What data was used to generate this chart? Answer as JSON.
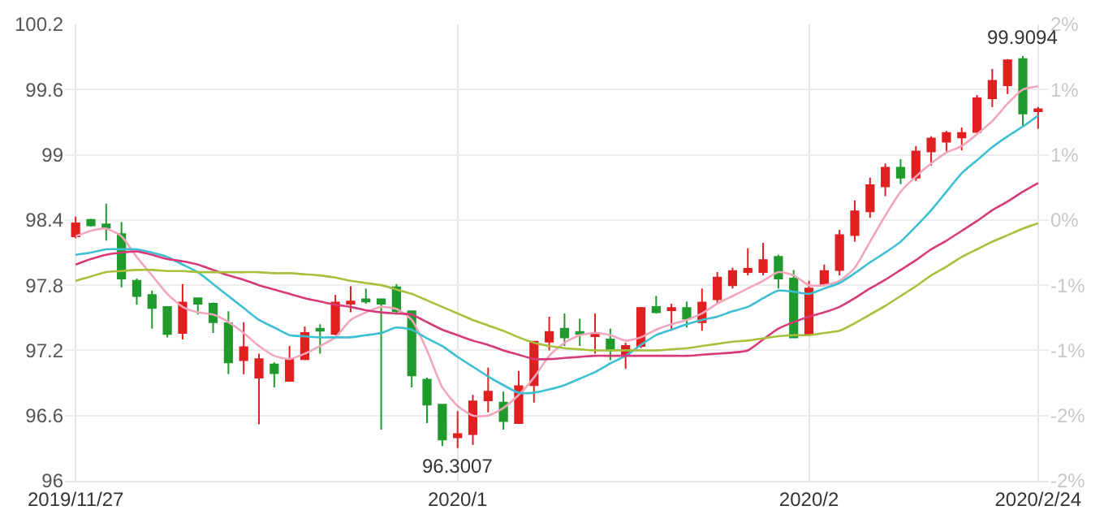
{
  "chart_data": {
    "type": "candlestick",
    "categories": [
      "2019/11/27",
      null,
      null,
      null,
      null,
      null,
      null,
      null,
      null,
      null,
      null,
      null,
      null,
      null,
      null,
      null,
      null,
      null,
      null,
      null,
      null,
      null,
      null,
      null,
      null,
      "2020/1",
      null,
      null,
      null,
      null,
      null,
      null,
      null,
      null,
      null,
      null,
      null,
      null,
      null,
      null,
      null,
      null,
      null,
      null,
      null,
      null,
      null,
      null,
      "2020/2",
      null,
      null,
      null,
      null,
      null,
      null,
      null,
      null,
      null,
      null,
      null,
      null,
      null,
      null,
      "2020/2/24"
    ],
    "ohlc": [
      [
        98.25,
        98.43,
        98.23,
        98.37
      ],
      [
        98.4,
        98.41,
        98.34,
        98.35
      ],
      [
        98.36,
        98.55,
        98.21,
        98.33
      ],
      [
        98.27,
        98.38,
        97.78,
        97.86
      ],
      [
        97.84,
        97.86,
        97.62,
        97.7
      ],
      [
        97.71,
        97.75,
        97.4,
        97.59
      ],
      [
        97.6,
        97.6,
        97.32,
        97.35
      ],
      [
        97.36,
        97.81,
        97.3,
        97.64
      ],
      [
        97.68,
        97.68,
        97.53,
        97.63
      ],
      [
        97.63,
        97.64,
        97.36,
        97.46
      ],
      [
        97.45,
        97.56,
        96.98,
        97.09
      ],
      [
        97.11,
        97.46,
        96.98,
        97.23
      ],
      [
        96.95,
        97.17,
        96.52,
        97.12
      ],
      [
        97.07,
        97.09,
        96.86,
        96.99
      ],
      [
        96.92,
        97.24,
        96.92,
        97.12
      ],
      [
        97.12,
        97.42,
        97.11,
        97.36
      ],
      [
        97.4,
        97.44,
        97.17,
        97.38
      ],
      [
        97.35,
        97.71,
        97.34,
        97.64
      ],
      [
        97.63,
        97.79,
        97.55,
        97.65
      ],
      [
        97.67,
        97.77,
        97.63,
        97.65
      ],
      [
        97.67,
        97.67,
        96.47,
        97.63
      ],
      [
        97.78,
        97.81,
        97.53,
        97.56
      ],
      [
        97.56,
        97.56,
        96.86,
        96.97
      ],
      [
        96.93,
        96.95,
        96.53,
        96.7
      ],
      [
        96.7,
        96.7,
        96.32,
        96.38
      ],
      [
        96.4,
        96.64,
        96.3007,
        96.43
      ],
      [
        96.43,
        96.79,
        96.33,
        96.73
      ],
      [
        96.74,
        97.04,
        96.63,
        96.82
      ],
      [
        96.72,
        96.82,
        96.47,
        96.55
      ],
      [
        96.53,
        97.01,
        96.53,
        96.87
      ],
      [
        96.88,
        97.28,
        96.72,
        97.28
      ],
      [
        97.28,
        97.51,
        97.2,
        97.37
      ],
      [
        97.4,
        97.54,
        97.24,
        97.32
      ],
      [
        97.37,
        97.49,
        97.24,
        97.35
      ],
      [
        97.33,
        97.54,
        97.17,
        97.35
      ],
      [
        97.3,
        97.4,
        97.11,
        97.2
      ],
      [
        97.16,
        97.27,
        97.03,
        97.24
      ],
      [
        97.24,
        97.6,
        97.22,
        97.59
      ],
      [
        97.6,
        97.7,
        97.54,
        97.55
      ],
      [
        97.57,
        97.63,
        97.38,
        97.59
      ],
      [
        97.59,
        97.65,
        97.41,
        97.49
      ],
      [
        97.46,
        97.77,
        97.38,
        97.64
      ],
      [
        97.67,
        97.92,
        97.63,
        97.87
      ],
      [
        97.8,
        97.96,
        97.77,
        97.93
      ],
      [
        97.92,
        98.14,
        97.89,
        97.95
      ],
      [
        97.92,
        98.19,
        97.89,
        98.03
      ],
      [
        98.06,
        98.08,
        97.77,
        97.86
      ],
      [
        97.86,
        97.94,
        97.32,
        97.32
      ],
      [
        97.35,
        97.84,
        97.35,
        97.77
      ],
      [
        97.81,
        97.99,
        97.79,
        97.93
      ],
      [
        97.94,
        98.31,
        97.89,
        98.26
      ],
      [
        98.26,
        98.58,
        98.2,
        98.48
      ],
      [
        98.48,
        98.79,
        98.42,
        98.72
      ],
      [
        98.71,
        98.92,
        98.62,
        98.88
      ],
      [
        98.88,
        98.96,
        98.73,
        98.79
      ],
      [
        98.79,
        99.08,
        98.76,
        99.03
      ],
      [
        99.03,
        99.17,
        98.9,
        99.15
      ],
      [
        99.12,
        99.22,
        99.03,
        99.2
      ],
      [
        99.16,
        99.25,
        99.04,
        99.2
      ],
      [
        99.21,
        99.55,
        99.2,
        99.52
      ],
      [
        99.52,
        99.79,
        99.44,
        99.68
      ],
      [
        99.64,
        99.88,
        99.56,
        99.87
      ],
      [
        99.88,
        99.9094,
        99.26,
        99.38
      ],
      [
        99.4,
        99.44,
        99.24,
        99.42
      ]
    ],
    "colors": [
      "#e02020",
      "#1f9a2c",
      "#1f9a2c",
      "#1f9a2c",
      "#1f9a2c",
      "#1f9a2c",
      "#1f9a2c",
      "#e02020",
      "#1f9a2c",
      "#1f9a2c",
      "#1f9a2c",
      "#e02020",
      "#e02020",
      "#1f9a2c",
      "#e02020",
      "#e02020",
      "#1f9a2c",
      "#e02020",
      "#e02020",
      "#1f9a2c",
      "#1f9a2c",
      "#1f9a2c",
      "#1f9a2c",
      "#1f9a2c",
      "#1f9a2c",
      "#e02020",
      "#e02020",
      "#e02020",
      "#1f9a2c",
      "#e02020",
      "#e02020",
      "#e02020",
      "#1f9a2c",
      "#1f9a2c",
      "#e02020",
      "#1f9a2c",
      "#e02020",
      "#e02020",
      "#1f9a2c",
      "#e02020",
      "#1f9a2c",
      "#e02020",
      "#e02020",
      "#e02020",
      "#e02020",
      "#e02020",
      "#1f9a2c",
      "#1f9a2c",
      "#e02020",
      "#e02020",
      "#e02020",
      "#e02020",
      "#e02020",
      "#e02020",
      "#1f9a2c",
      "#e02020",
      "#e02020",
      "#e02020",
      "#e02020",
      "#e02020",
      "#e02020",
      "#e02020",
      "#1f9a2c",
      "#e02020"
    ],
    "series": [
      {
        "type": "line",
        "color": "#f2a6bc",
        "values": [
          98.25,
          98.3,
          98.32,
          98.25,
          98.06,
          97.89,
          97.72,
          97.6,
          97.55,
          97.53,
          97.46,
          97.36,
          97.24,
          97.15,
          97.12,
          97.17,
          97.24,
          97.32,
          97.48,
          97.55,
          97.6,
          97.58,
          97.48,
          97.2,
          96.86,
          96.69,
          96.6,
          96.6,
          96.67,
          96.79,
          96.95,
          97.15,
          97.27,
          97.34,
          97.36,
          97.34,
          97.29,
          97.32,
          97.39,
          97.44,
          97.48,
          97.54,
          97.63,
          97.7,
          97.77,
          97.84,
          97.92,
          97.89,
          97.8,
          97.8,
          97.84,
          97.96,
          98.2,
          98.44,
          98.66,
          98.8,
          98.92,
          99.02,
          99.08,
          99.19,
          99.31,
          99.47,
          99.6,
          99.63
        ]
      },
      {
        "type": "line",
        "color": "#3dbfd2",
        "values": [
          98.08,
          98.1,
          98.13,
          98.13,
          98.13,
          98.1,
          98.06,
          97.99,
          97.92,
          97.81,
          97.7,
          97.59,
          97.48,
          97.41,
          97.34,
          97.33,
          97.32,
          97.32,
          97.32,
          97.34,
          97.36,
          97.41,
          97.39,
          97.31,
          97.24,
          97.14,
          97.05,
          96.96,
          96.88,
          96.81,
          96.81,
          96.84,
          96.88,
          96.94,
          97.0,
          97.08,
          97.15,
          97.25,
          97.34,
          97.39,
          97.44,
          97.48,
          97.51,
          97.56,
          97.6,
          97.68,
          97.75,
          97.74,
          97.72,
          97.77,
          97.82,
          97.91,
          98.01,
          98.1,
          98.2,
          98.34,
          98.49,
          98.66,
          98.83,
          98.95,
          99.07,
          99.17,
          99.26,
          99.36
        ]
      },
      {
        "type": "line",
        "color": "#d63a78",
        "values": [
          97.99,
          98.04,
          98.08,
          98.1,
          98.11,
          98.08,
          98.04,
          98.02,
          97.99,
          97.94,
          97.89,
          97.85,
          97.8,
          97.76,
          97.72,
          97.68,
          97.65,
          97.62,
          97.6,
          97.57,
          97.55,
          97.54,
          97.53,
          97.46,
          97.39,
          97.34,
          97.29,
          97.25,
          97.2,
          97.16,
          97.12,
          97.12,
          97.13,
          97.14,
          97.15,
          97.15,
          97.15,
          97.15,
          97.15,
          97.15,
          97.15,
          97.16,
          97.17,
          97.18,
          97.2,
          97.3,
          97.4,
          97.46,
          97.51,
          97.55,
          97.6,
          97.68,
          97.77,
          97.85,
          97.94,
          98.03,
          98.13,
          98.21,
          98.3,
          98.39,
          98.49,
          98.57,
          98.66,
          98.74
        ]
      },
      {
        "type": "line",
        "color": "#a6c03c",
        "values": [
          97.84,
          97.88,
          97.92,
          97.93,
          97.94,
          97.94,
          97.93,
          97.93,
          97.92,
          97.92,
          97.92,
          97.92,
          97.92,
          97.91,
          97.91,
          97.9,
          97.89,
          97.87,
          97.84,
          97.82,
          97.8,
          97.76,
          97.72,
          97.66,
          97.6,
          97.54,
          97.48,
          97.43,
          97.38,
          97.32,
          97.27,
          97.24,
          97.22,
          97.21,
          97.2,
          97.2,
          97.2,
          97.2,
          97.2,
          97.21,
          97.22,
          97.24,
          97.26,
          97.28,
          97.29,
          97.31,
          97.33,
          97.34,
          97.34,
          97.36,
          97.38,
          97.45,
          97.53,
          97.61,
          97.7,
          97.79,
          97.89,
          97.97,
          98.06,
          98.13,
          98.2,
          98.26,
          98.32,
          98.37
        ]
      }
    ],
    "ylim": [
      96,
      100.2
    ],
    "yticks": [
      96,
      96.6,
      97.2,
      97.8,
      98.4,
      99,
      99.6,
      100.2
    ],
    "y2lim": [
      -2.41,
      1.86
    ],
    "y2ticks": [
      {
        "value": -2.41,
        "label": "-2%"
      },
      {
        "value": -1.8,
        "label": "-2%"
      },
      {
        "value": -1.19,
        "label": "-1%"
      },
      {
        "value": -0.58,
        "label": "-1%"
      },
      {
        "value": 0.03,
        "label": "0%"
      },
      {
        "value": 0.64,
        "label": "1%"
      },
      {
        "value": 1.25,
        "label": "1%"
      },
      {
        "value": 1.86,
        "label": "2%"
      }
    ],
    "annotations": [
      {
        "text": "96.3007",
        "x": "2020/1",
        "y": 96.3007
      },
      {
        "text": "99.9094",
        "y": 99.9094
      }
    ],
    "grid": true
  }
}
